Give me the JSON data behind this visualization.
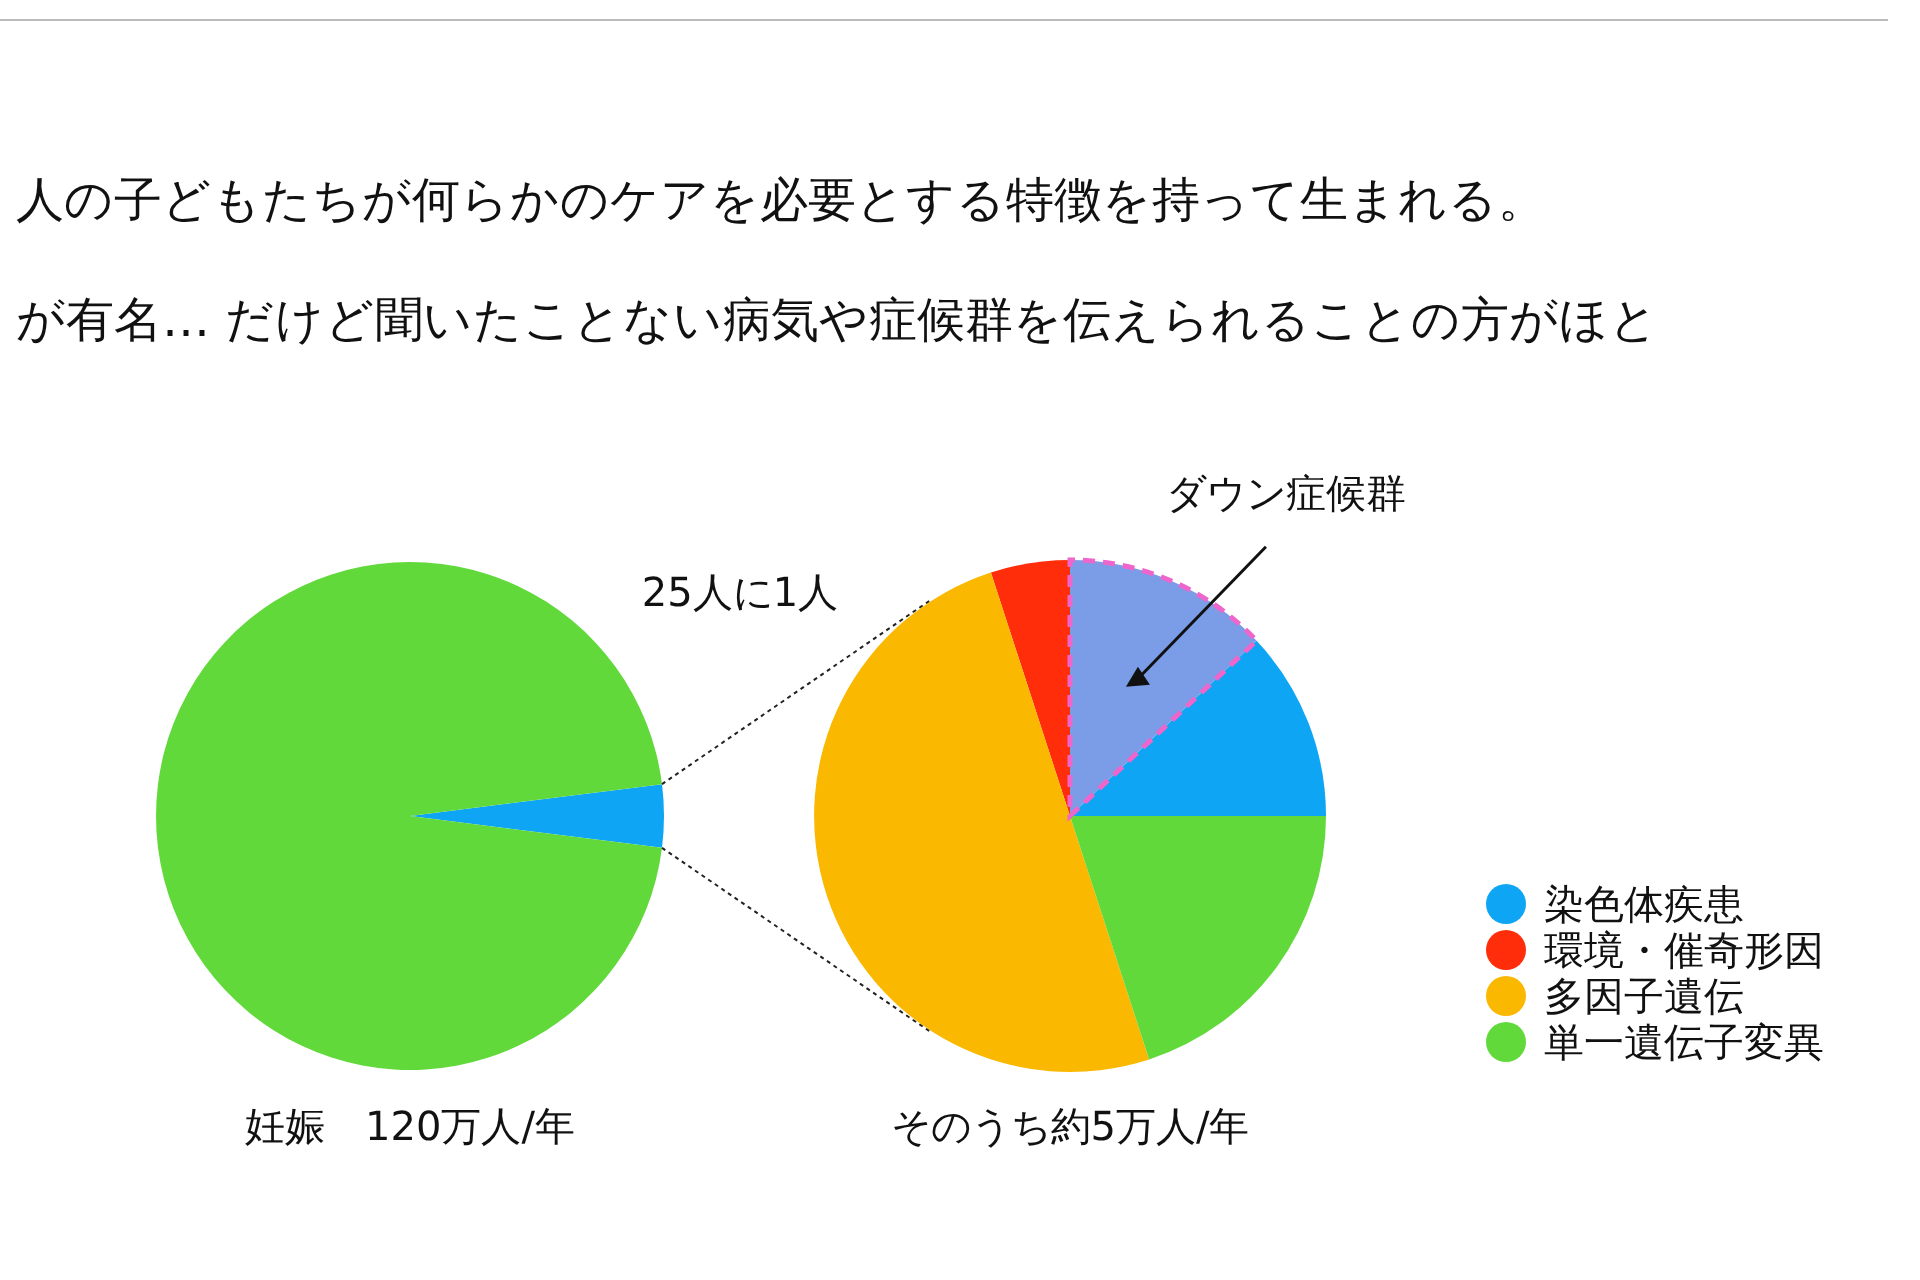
{
  "chart_data": [
    {
      "type": "pie",
      "title": "人の子どもたちが何らかのケアを必要とする特徴を持って生まれる。",
      "subtitle": "が有名… だけど聞いたことない病気や症候群を伝えられることの方がほと",
      "xlabel": "妊娠　120万人/年",
      "categories": [
        null,
        null
      ],
      "values": [
        4,
        96
      ],
      "colors": [
        "#0ea5f5",
        "#62d93b"
      ],
      "annotations": [
        "25人に1人"
      ]
    },
    {
      "type": "pie",
      "xlabel": "そのうち約5万人/年",
      "categories": [
        "染色体疾患",
        null,
        "環境・催奇形因",
        "多因子遺伝",
        "単一遺伝子変異"
      ],
      "values": [
        12,
        13,
        5,
        50,
        20
      ],
      "colors": [
        "#0ea5f5",
        "#7b9de8",
        "#ff2d0a",
        "#fbb800",
        "#62d93b"
      ],
      "annotations": [
        "ダウン症候群"
      ],
      "legend": "right"
    }
  ]
}
